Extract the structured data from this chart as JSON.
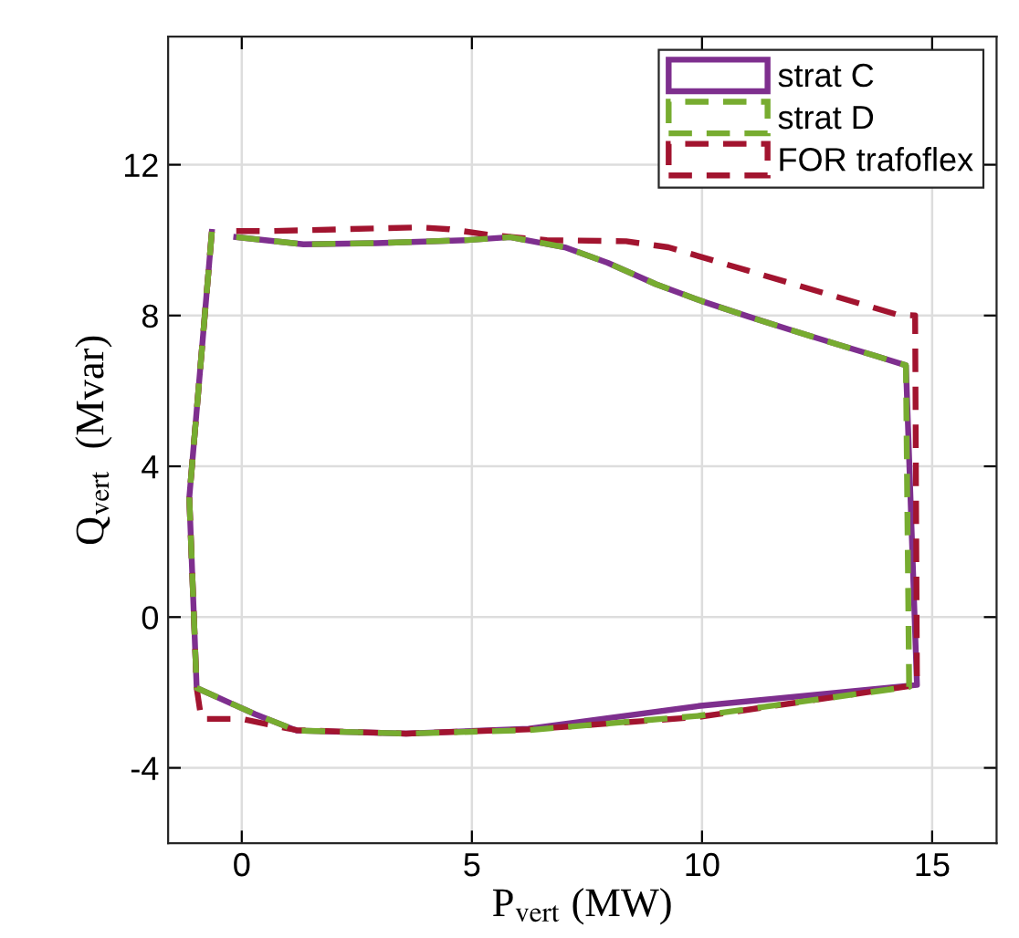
{
  "chart_data": {
    "type": "line",
    "xlabel": "P$_{vert}$ (MW)",
    "ylabel": "Q$_{vert}$  (Mvar)",
    "xlim": [
      -1.6,
      16.4
    ],
    "ylim": [
      -6,
      15.4
    ],
    "xticks": [
      0,
      5,
      10,
      15
    ],
    "yticks": [
      -4,
      0,
      4,
      8,
      12
    ],
    "grid": true,
    "legend": "top right",
    "series": [
      {
        "name": "strat C",
        "color": "#7e2f8e",
        "line_style": "solid",
        "x": [
          -0.65,
          -1.14,
          -0.98,
          0.28,
          1.19,
          3.57,
          6.23,
          9.92,
          14.67,
          14.43,
          13.77,
          12.98,
          11.92,
          10.99,
          10.0,
          9.0,
          7.95,
          7.02,
          5.83,
          4.9,
          2.92,
          1.34,
          -0.12
        ],
        "values": [
          10.22,
          3.17,
          -1.88,
          -2.57,
          -3.01,
          -3.09,
          -2.96,
          -2.36,
          -1.8,
          6.68,
          6.93,
          7.22,
          7.62,
          7.98,
          8.38,
          8.83,
          9.4,
          9.81,
          10.08,
          10.0,
          9.92,
          9.89,
          10.08
        ]
      },
      {
        "name": "strat D",
        "color": "#77ac30",
        "line_style": "dashed",
        "x": [
          -0.65,
          -1.14,
          -0.98,
          0.28,
          1.19,
          3.57,
          6.23,
          9.92,
          14.5,
          14.43,
          13.77,
          12.98,
          11.92,
          10.99,
          10.0,
          9.0,
          7.95,
          7.02,
          5.83,
          4.9,
          2.92,
          1.34,
          -0.12
        ],
        "values": [
          10.22,
          3.17,
          -1.88,
          -2.57,
          -3.01,
          -3.09,
          -3.0,
          -2.62,
          -1.85,
          6.68,
          6.93,
          7.22,
          7.62,
          7.98,
          8.38,
          8.83,
          9.4,
          9.81,
          10.08,
          10.0,
          9.92,
          9.89,
          10.08
        ]
      },
      {
        "name": "FOR trafoflex",
        "color": "#a2142f",
        "line_style": "dashed",
        "x": [
          -0.65,
          -1.14,
          -0.98,
          -0.88,
          0.0,
          1.19,
          3.57,
          6.23,
          9.92,
          14.67,
          14.63,
          14.23,
          9.27,
          8.35,
          6.63,
          5.44,
          4.51,
          3.85,
          0.61,
          -0.12
        ],
        "values": [
          10.22,
          3.17,
          -1.88,
          -2.7,
          -2.7,
          -3.0,
          -3.09,
          -2.98,
          -2.65,
          -1.8,
          8.0,
          8.03,
          9.81,
          9.97,
          10.0,
          10.13,
          10.29,
          10.34,
          10.24,
          10.24
        ]
      }
    ]
  }
}
